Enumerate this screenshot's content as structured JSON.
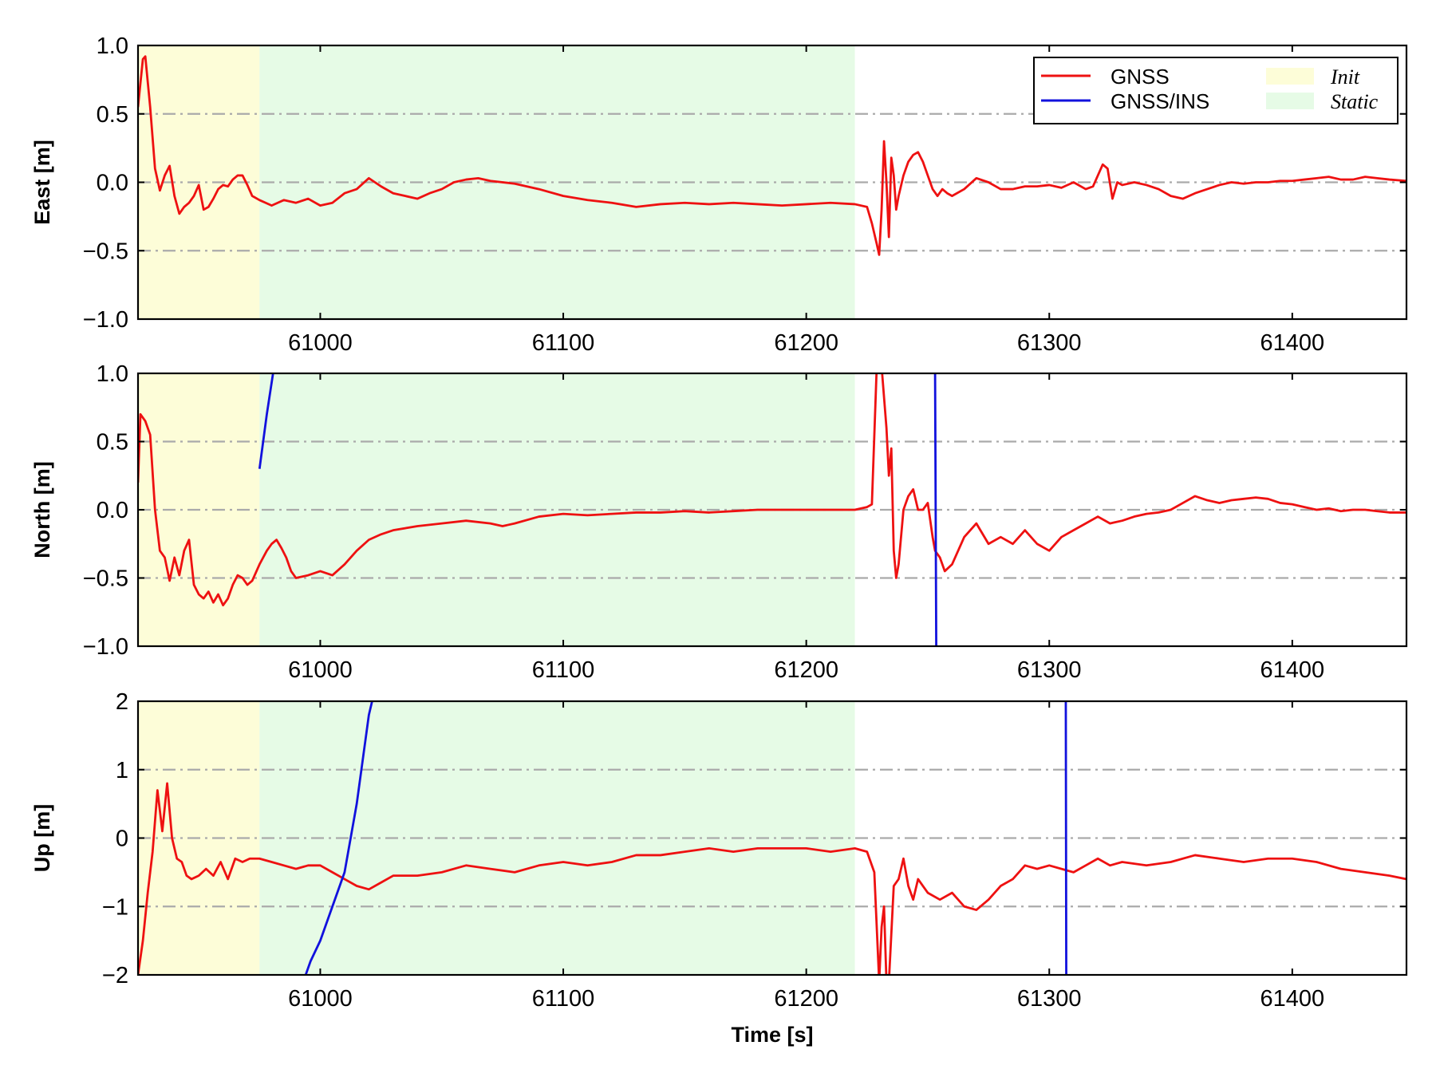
{
  "chart_data": {
    "type": "line",
    "xlabel": "Time [s]",
    "xlim": [
      60925,
      61447
    ],
    "xticks": [
      61000,
      61100,
      61200,
      61300,
      61400
    ],
    "xtick_labels": [
      "61000",
      "61100",
      "61200",
      "61300",
      "61400"
    ],
    "grid": "horizontal dash-dot at major y ticks",
    "legend": {
      "placement": "top-right of first panel",
      "entries": [
        {
          "label": "GNSS",
          "kind": "line",
          "color": "#ee1111"
        },
        {
          "label": "GNSS/INS",
          "kind": "line",
          "color": "#1111dd"
        },
        {
          "label": "Init",
          "kind": "region",
          "color": "#fdfdd8"
        },
        {
          "label": "Static",
          "kind": "region",
          "color": "#e6fbe6"
        }
      ]
    },
    "regions": [
      {
        "name": "Init",
        "x": [
          60925,
          60975
        ],
        "color": "#fdfdd8"
      },
      {
        "name": "Static",
        "x": [
          60975,
          61220
        ],
        "color": "#e6fbe6"
      }
    ],
    "colors": {
      "GNSS": "#ee1111",
      "GNSS/INS": "#1111dd",
      "grid": "#aaaaaa"
    },
    "panels": [
      {
        "ylabel": "East [m]",
        "ylim": [
          -1.0,
          1.0
        ],
        "yticks": [
          -1.0,
          -0.5,
          0.0,
          0.5,
          1.0
        ],
        "ytick_labels": [
          "−1.0",
          "−0.5",
          "0.0",
          "0.5",
          "1.0"
        ],
        "grid_y": [
          -0.5,
          0.0,
          0.5
        ],
        "series": [
          {
            "name": "GNSS",
            "x": [
              60925,
              60927,
              60928,
              60930,
              60932,
              60934,
              60936,
              60938,
              60940,
              60942,
              60944,
              60946,
              60948,
              60950,
              60952,
              60954,
              60956,
              60958,
              60960,
              60962,
              60964,
              60966,
              60968,
              60970,
              60972,
              60975,
              60980,
              60985,
              60990,
              60995,
              61000,
              61005,
              61010,
              61015,
              61020,
              61025,
              61030,
              61035,
              61040,
              61045,
              61050,
              61055,
              61060,
              61065,
              61070,
              61080,
              61090,
              61100,
              61110,
              61120,
              61130,
              61140,
              61150,
              61160,
              61170,
              61180,
              61190,
              61200,
              61210,
              61220,
              61225,
              61227,
              61229,
              61230,
              61231,
              61232,
              61233,
              61234,
              61235,
              61236,
              61237,
              61238,
              61240,
              61242,
              61244,
              61246,
              61248,
              61250,
              61252,
              61254,
              61256,
              61258,
              61260,
              61265,
              61270,
              61275,
              61280,
              61285,
              61290,
              61295,
              61300,
              61305,
              61310,
              61315,
              61318,
              61320,
              61322,
              61324,
              61326,
              61328,
              61330,
              61335,
              61340,
              61345,
              61350,
              61355,
              61360,
              61365,
              61370,
              61375,
              61380,
              61385,
              61390,
              61395,
              61400,
              61405,
              61410,
              61415,
              61420,
              61425,
              61430,
              61435,
              61440,
              61447
            ],
            "y": [
              0.55,
              0.9,
              0.92,
              0.55,
              0.1,
              -0.06,
              0.05,
              0.12,
              -0.1,
              -0.23,
              -0.18,
              -0.15,
              -0.1,
              -0.02,
              -0.2,
              -0.18,
              -0.12,
              -0.05,
              -0.02,
              -0.03,
              0.02,
              0.05,
              0.05,
              -0.02,
              -0.1,
              -0.13,
              -0.17,
              -0.13,
              -0.15,
              -0.12,
              -0.17,
              -0.15,
              -0.08,
              -0.05,
              0.03,
              -0.03,
              -0.08,
              -0.1,
              -0.12,
              -0.08,
              -0.05,
              0.0,
              0.02,
              0.03,
              0.01,
              -0.01,
              -0.05,
              -0.1,
              -0.13,
              -0.15,
              -0.18,
              -0.16,
              -0.15,
              -0.16,
              -0.15,
              -0.16,
              -0.17,
              -0.16,
              -0.15,
              -0.16,
              -0.18,
              -0.3,
              -0.45,
              -0.53,
              -0.2,
              0.3,
              0.0,
              -0.4,
              0.18,
              0.05,
              -0.2,
              -0.1,
              0.05,
              0.15,
              0.2,
              0.22,
              0.15,
              0.05,
              -0.05,
              -0.1,
              -0.05,
              -0.08,
              -0.1,
              -0.05,
              0.03,
              0.0,
              -0.05,
              -0.05,
              -0.03,
              -0.03,
              -0.02,
              -0.04,
              0.0,
              -0.05,
              -0.03,
              0.05,
              0.13,
              0.1,
              -0.12,
              0.0,
              -0.02,
              0.0,
              -0.02,
              -0.05,
              -0.1,
              -0.12,
              -0.08,
              -0.05,
              -0.02,
              0.0,
              -0.01,
              0.0,
              0.0,
              0.01,
              0.01,
              0.02,
              0.03,
              0.04,
              0.02,
              0.02,
              0.04,
              0.03,
              0.02,
              0.01
            ]
          },
          {
            "name": "GNSS/INS",
            "x": [],
            "y": []
          }
        ]
      },
      {
        "ylabel": "North [m]",
        "ylim": [
          -1.0,
          1.0
        ],
        "yticks": [
          -1.0,
          -0.5,
          0.0,
          0.5,
          1.0
        ],
        "ytick_labels": [
          "−1.0",
          "−0.5",
          "0.0",
          "0.5",
          "1.0"
        ],
        "grid_y": [
          -0.5,
          0.0,
          0.5
        ],
        "series": [
          {
            "name": "GNSS",
            "x": [
              60925,
              60926,
              60928,
              60930,
              60932,
              60934,
              60936,
              60938,
              60940,
              60942,
              60944,
              60946,
              60948,
              60950,
              60952,
              60954,
              60956,
              60958,
              60960,
              60962,
              60964,
              60966,
              60968,
              60970,
              60972,
              60975,
              60978,
              60980,
              60982,
              60984,
              60986,
              60988,
              60990,
              60995,
              61000,
              61005,
              61010,
              61015,
              61020,
              61025,
              61030,
              61040,
              61050,
              61060,
              61070,
              61075,
              61080,
              61090,
              61100,
              61110,
              61120,
              61130,
              61140,
              61150,
              61160,
              61170,
              61180,
              61190,
              61200,
              61210,
              61220,
              61225,
              61227,
              61229,
              61231,
              61233,
              61234,
              61235,
              61236,
              61237,
              61238,
              61240,
              61242,
              61244,
              61246,
              61248,
              61250,
              61252,
              61253,
              61255,
              61257,
              61260,
              61265,
              61270,
              61275,
              61280,
              61285,
              61290,
              61295,
              61300,
              61305,
              61310,
              61315,
              61320,
              61325,
              61330,
              61335,
              61340,
              61345,
              61350,
              61355,
              61360,
              61365,
              61370,
              61375,
              61380,
              61385,
              61390,
              61395,
              61400,
              61405,
              61410,
              61415,
              61420,
              61425,
              61430,
              61435,
              61440,
              61447
            ],
            "y": [
              0.2,
              0.7,
              0.65,
              0.55,
              0.0,
              -0.3,
              -0.35,
              -0.52,
              -0.35,
              -0.48,
              -0.3,
              -0.22,
              -0.55,
              -0.62,
              -0.65,
              -0.6,
              -0.68,
              -0.62,
              -0.7,
              -0.65,
              -0.55,
              -0.48,
              -0.5,
              -0.55,
              -0.52,
              -0.4,
              -0.3,
              -0.25,
              -0.22,
              -0.28,
              -0.35,
              -0.45,
              -0.5,
              -0.48,
              -0.45,
              -0.48,
              -0.4,
              -0.3,
              -0.22,
              -0.18,
              -0.15,
              -0.12,
              -0.1,
              -0.08,
              -0.1,
              -0.12,
              -0.1,
              -0.05,
              -0.03,
              -0.04,
              -0.03,
              -0.02,
              -0.02,
              -0.01,
              -0.02,
              -0.01,
              0.0,
              0.0,
              0.0,
              0.0,
              0.0,
              0.02,
              0.04,
              1.05,
              1.05,
              0.6,
              0.25,
              0.45,
              -0.3,
              -0.5,
              -0.4,
              0.0,
              0.1,
              0.15,
              0.0,
              0.0,
              0.05,
              -0.2,
              -0.3,
              -0.35,
              -0.45,
              -0.4,
              -0.2,
              -0.1,
              -0.25,
              -0.2,
              -0.25,
              -0.15,
              -0.25,
              -0.3,
              -0.2,
              -0.15,
              -0.1,
              -0.05,
              -0.1,
              -0.08,
              -0.05,
              -0.03,
              -0.02,
              0.0,
              0.05,
              0.1,
              0.07,
              0.05,
              0.07,
              0.08,
              0.09,
              0.08,
              0.05,
              0.04,
              0.02,
              0.0,
              0.01,
              -0.01,
              0.0,
              0.0,
              -0.01,
              -0.02,
              -0.02
            ]
          },
          {
            "name": "GNSS/INS",
            "x": [
              60975,
              60978,
              60981,
              61253,
              61253.5
            ],
            "y": [
              0.3,
              0.7,
              1.05,
              1.05,
              -1.05
            ]
          }
        ]
      },
      {
        "ylabel": "Up [m]",
        "ylim": [
          -2,
          2
        ],
        "yticks": [
          -2,
          -1,
          0,
          1,
          2
        ],
        "ytick_labels": [
          "−2",
          "−1",
          "0",
          "1",
          "2"
        ],
        "grid_y": [
          -1,
          0,
          1
        ],
        "series": [
          {
            "name": "GNSS",
            "x": [
              60925,
              60927,
              60929,
              60931,
              60933,
              60935,
              60937,
              60939,
              60941,
              60943,
              60945,
              60947,
              60950,
              60953,
              60956,
              60959,
              60962,
              60965,
              60968,
              60971,
              60975,
              60980,
              60985,
              60990,
              60995,
              61000,
              61005,
              61010,
              61015,
              61020,
              61025,
              61030,
              61040,
              61050,
              61060,
              61070,
              61080,
              61090,
              61100,
              61110,
              61120,
              61130,
              61140,
              61150,
              61160,
              61170,
              61180,
              61190,
              61200,
              61210,
              61220,
              61225,
              61228,
              61230,
              61231,
              61232,
              61233,
              61234,
              61236,
              61238,
              61240,
              61242,
              61244,
              61246,
              61248,
              61250,
              61255,
              61260,
              61265,
              61270,
              61275,
              61280,
              61285,
              61290,
              61295,
              61300,
              61305,
              61310,
              61315,
              61320,
              61325,
              61330,
              61340,
              61350,
              61360,
              61370,
              61380,
              61390,
              61400,
              61410,
              61420,
              61430,
              61440,
              61447
            ],
            "y": [
              -2.0,
              -1.5,
              -0.8,
              -0.2,
              0.7,
              0.1,
              0.8,
              0.0,
              -0.3,
              -0.35,
              -0.55,
              -0.6,
              -0.55,
              -0.45,
              -0.55,
              -0.35,
              -0.6,
              -0.3,
              -0.35,
              -0.3,
              -0.3,
              -0.35,
              -0.4,
              -0.45,
              -0.4,
              -0.4,
              -0.5,
              -0.6,
              -0.7,
              -0.75,
              -0.65,
              -0.55,
              -0.55,
              -0.5,
              -0.4,
              -0.45,
              -0.5,
              -0.4,
              -0.35,
              -0.4,
              -0.35,
              -0.25,
              -0.25,
              -0.2,
              -0.15,
              -0.2,
              -0.15,
              -0.15,
              -0.15,
              -0.2,
              -0.15,
              -0.2,
              -0.5,
              -2.1,
              -1.3,
              -1.0,
              -2.1,
              -2.1,
              -0.7,
              -0.6,
              -0.3,
              -0.7,
              -0.9,
              -0.6,
              -0.7,
              -0.8,
              -0.9,
              -0.8,
              -1.0,
              -1.05,
              -0.9,
              -0.7,
              -0.6,
              -0.4,
              -0.45,
              -0.4,
              -0.45,
              -0.5,
              -0.4,
              -0.3,
              -0.4,
              -0.35,
              -0.4,
              -0.35,
              -0.25,
              -0.3,
              -0.35,
              -0.3,
              -0.3,
              -0.35,
              -0.45,
              -0.5,
              -0.55,
              -0.6
            ]
          },
          {
            "name": "GNSS/INS",
            "x": [
              60993,
              60996,
              61000,
              61005,
              61010,
              61015,
              61020,
              61022,
              61306.8,
              61307
            ],
            "y": [
              -2.1,
              -1.8,
              -1.5,
              -1.0,
              -0.5,
              0.5,
              1.8,
              2.1,
              2.1,
              -2.1
            ]
          }
        ]
      }
    ]
  }
}
